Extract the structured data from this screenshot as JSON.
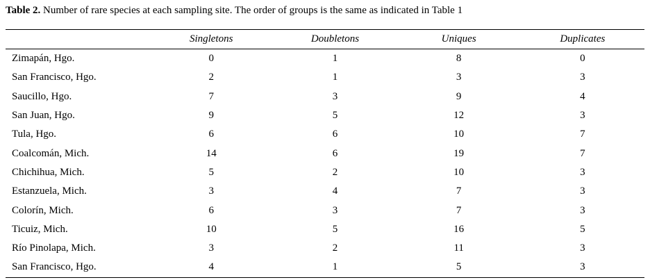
{
  "caption": {
    "label": "Table 2.",
    "text": "Number of rare species at each sampling site. The order of groups is the same as indicated in Table 1"
  },
  "table": {
    "header": [
      "Singletons",
      "Doubletons",
      "Uniques",
      "Duplicates"
    ],
    "rows": [
      [
        "Zimapán, Hgo.",
        0,
        1,
        8,
        0
      ],
      [
        "San Francisco, Hgo.",
        2,
        1,
        3,
        3
      ],
      [
        "Saucillo, Hgo.",
        7,
        3,
        9,
        4
      ],
      [
        "San Juan, Hgo.",
        9,
        5,
        12,
        3
      ],
      [
        "Tula, Hgo.",
        6,
        6,
        10,
        7
      ],
      [
        "Coalcomán, Mich.",
        14,
        6,
        19,
        7
      ],
      [
        "Chichihua, Mich.",
        5,
        2,
        10,
        3
      ],
      [
        "Estanzuela, Mich.",
        3,
        4,
        7,
        3
      ],
      [
        "Colorín, Mich.",
        6,
        3,
        7,
        3
      ],
      [
        "Ticuiz, Mich.",
        10,
        5,
        16,
        5
      ],
      [
        "Río Pinolapa, Mich.",
        3,
        2,
        11,
        3
      ],
      [
        "San Francisco, Hgo.",
        4,
        1,
        5,
        3
      ]
    ]
  }
}
